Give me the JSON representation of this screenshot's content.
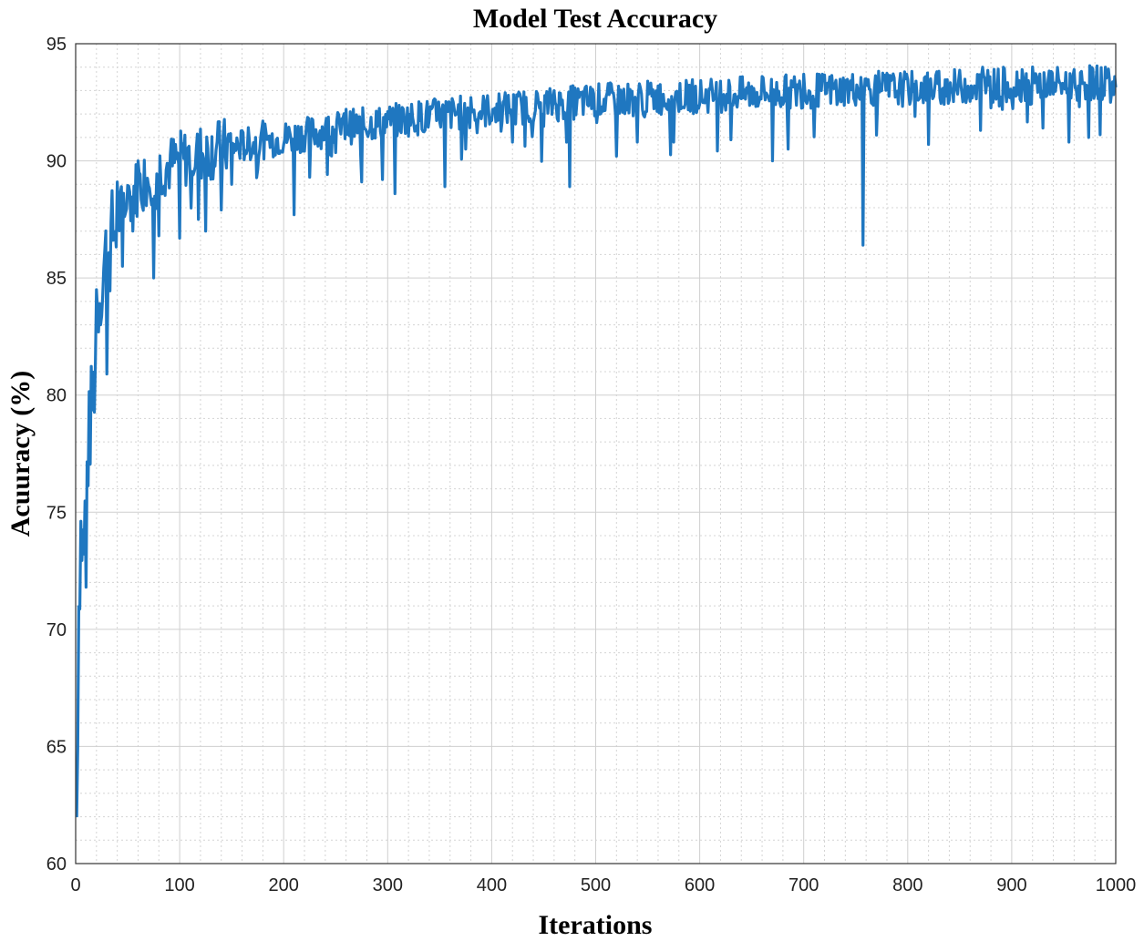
{
  "chart_data": {
    "type": "line",
    "title": "Model Test Accuracy",
    "xlabel": "Iterations",
    "ylabel": "Acuuracy (%)",
    "xlim": [
      0,
      1000
    ],
    "ylim": [
      60,
      95
    ],
    "xticks": [
      0,
      100,
      200,
      300,
      400,
      500,
      600,
      700,
      800,
      900,
      1000
    ],
    "yticks": [
      60,
      65,
      70,
      75,
      80,
      85,
      90,
      95
    ],
    "grid": true,
    "minor_grid": true,
    "line_color": "#1f77c0",
    "series": [
      {
        "trend": [
          [
            1,
            61.8
          ],
          [
            3,
            71.0
          ],
          [
            5,
            74.0
          ],
          [
            8,
            73.0
          ],
          [
            10,
            76.0
          ],
          [
            13,
            78.0
          ],
          [
            15,
            79.0
          ],
          [
            18,
            80.5
          ],
          [
            20,
            82.5
          ],
          [
            22,
            84.0
          ],
          [
            25,
            85.0
          ],
          [
            28,
            85.5
          ],
          [
            30,
            85.8
          ],
          [
            35,
            86.5
          ],
          [
            40,
            87.3
          ],
          [
            50,
            88.2
          ],
          [
            60,
            88.8
          ],
          [
            70,
            89.2
          ],
          [
            80,
            89.5
          ],
          [
            100,
            89.9
          ],
          [
            120,
            90.2
          ],
          [
            150,
            90.5
          ],
          [
            200,
            90.9
          ],
          [
            250,
            91.3
          ],
          [
            300,
            91.6
          ],
          [
            350,
            91.9
          ],
          [
            400,
            92.1
          ],
          [
            450,
            92.3
          ],
          [
            500,
            92.5
          ],
          [
            550,
            92.6
          ],
          [
            600,
            92.7
          ],
          [
            650,
            92.8
          ],
          [
            700,
            92.9
          ],
          [
            750,
            93.0
          ],
          [
            800,
            93.0
          ],
          [
            850,
            93.1
          ],
          [
            900,
            93.2
          ],
          [
            950,
            93.2
          ],
          [
            1000,
            93.3
          ]
        ],
        "dips": [
          [
            10,
            71.8
          ],
          [
            30,
            80.9
          ],
          [
            24,
            83.0
          ],
          [
            45,
            85.5
          ],
          [
            55,
            87.0
          ],
          [
            75,
            85.0
          ],
          [
            80,
            86.8
          ],
          [
            100,
            86.7
          ],
          [
            118,
            87.5
          ],
          [
            125,
            87.0
          ],
          [
            140,
            87.9
          ],
          [
            150,
            89.0
          ],
          [
            210,
            87.7
          ],
          [
            225,
            89.3
          ],
          [
            275,
            89.1
          ],
          [
            295,
            89.2
          ],
          [
            307,
            88.6
          ],
          [
            355,
            88.9
          ],
          [
            375,
            90.5
          ],
          [
            420,
            90.8
          ],
          [
            475,
            88.9
          ],
          [
            520,
            90.2
          ],
          [
            540,
            90.8
          ],
          [
            575,
            90.8
          ],
          [
            630,
            90.9
          ],
          [
            670,
            90.0
          ],
          [
            685,
            90.5
          ],
          [
            757,
            86.4
          ],
          [
            770,
            91.1
          ],
          [
            820,
            90.7
          ],
          [
            870,
            91.3
          ],
          [
            930,
            91.4
          ],
          [
            955,
            90.8
          ],
          [
            995,
            92.5
          ]
        ],
        "peaks": [
          [
            20,
            84.5
          ],
          [
            40,
            89.1
          ],
          [
            60,
            90.0
          ],
          [
            100,
            91.0
          ],
          [
            140,
            91.5
          ],
          [
            180,
            91.7
          ],
          [
            260,
            92.2
          ],
          [
            300,
            92.1
          ],
          [
            380,
            92.7
          ],
          [
            420,
            92.9
          ],
          [
            460,
            93.0
          ],
          [
            520,
            93.0
          ],
          [
            560,
            93.2
          ],
          [
            620,
            93.4
          ],
          [
            660,
            93.6
          ],
          [
            700,
            93.7
          ],
          [
            760,
            93.5
          ],
          [
            820,
            93.7
          ],
          [
            872,
            94.0
          ],
          [
            910,
            93.9
          ],
          [
            960,
            93.9
          ],
          [
            990,
            94.0
          ]
        ]
      }
    ]
  }
}
